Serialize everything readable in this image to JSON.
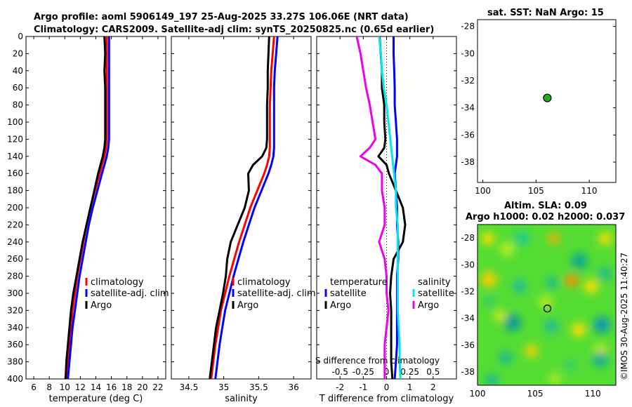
{
  "header": {
    "title_line1": "Argo profile: aoml 5906149_197 25-Aug-2025 33.27S 106.06E (NRT data)",
    "title_line2": "Climatology: CARS2009. Satellite-adj clim: synTS_20250825.nc (0.65d earlier)"
  },
  "side_label": "©IMOS 30-Aug-2025 11:40:27",
  "map1_title": "sat. SST: NaN Argo: 15",
  "map2_title_line1": "Altim. SLA: 0.09",
  "map2_title_line2": "Argo h1000: 0.02 h2000: 0.037",
  "colors": {
    "climatology": "#ff0000",
    "satellite": "#0000ff",
    "argo": "#000000",
    "sat_sal": "#00e5ee",
    "argo_sal": "#ee00ee",
    "marker": "#22aa22"
  },
  "chart_data": [
    {
      "type": "line",
      "id": "temperature",
      "xlabel": "temperature (deg C)",
      "xlim": [
        5,
        23
      ],
      "xticks": [
        "6",
        "8",
        "10",
        "12",
        "14",
        "16",
        "18",
        "20",
        "22"
      ],
      "ylim": [
        0,
        400
      ],
      "yticks": [
        "0",
        "20",
        "40",
        "60",
        "80",
        "100",
        "120",
        "140",
        "160",
        "180",
        "200",
        "220",
        "240",
        "260",
        "280",
        "300",
        "320",
        "340",
        "360",
        "380",
        "400"
      ],
      "depth": [
        0,
        20,
        40,
        60,
        80,
        100,
        120,
        130,
        140,
        150,
        160,
        180,
        200,
        220,
        240,
        260,
        280,
        300,
        320,
        340,
        360,
        380,
        400
      ],
      "series": [
        {
          "name": "climatology",
          "values": [
            15.4,
            15.4,
            15.4,
            15.4,
            15.4,
            15.4,
            15.4,
            15.3,
            15.1,
            14.8,
            14.5,
            13.9,
            13.3,
            12.8,
            12.4,
            12.0,
            11.6,
            11.3,
            11.0,
            10.8,
            10.6,
            10.4,
            10.3
          ]
        },
        {
          "name": "satellite-adj. clim",
          "values": [
            15.7,
            15.7,
            15.7,
            15.7,
            15.7,
            15.7,
            15.7,
            15.6,
            15.4,
            15.1,
            14.8,
            14.2,
            13.6,
            13.1,
            12.7,
            12.3,
            11.9,
            11.6,
            11.3,
            11.0,
            10.8,
            10.6,
            10.4
          ]
        },
        {
          "name": "Argo",
          "values": [
            15.1,
            15.2,
            15.1,
            15.2,
            15.2,
            15.2,
            15.2,
            15.1,
            14.9,
            14.6,
            14.3,
            13.8,
            13.3,
            12.8,
            12.3,
            11.9,
            11.5,
            11.1,
            10.8,
            10.6,
            10.4,
            10.2,
            10.1
          ]
        }
      ],
      "legend": [
        "climatology",
        "satellite-adj. clim",
        "Argo"
      ]
    },
    {
      "type": "line",
      "id": "salinity",
      "xlabel": "salinity",
      "xlim": [
        34.25,
        36.25
      ],
      "xticks": [
        "34.5",
        "35",
        "35.5",
        "36"
      ],
      "ylim": [
        0,
        400
      ],
      "depth": [
        0,
        20,
        40,
        60,
        80,
        100,
        120,
        130,
        140,
        150,
        160,
        180,
        200,
        220,
        240,
        260,
        280,
        300,
        320,
        340,
        360,
        380,
        400
      ],
      "series": [
        {
          "name": "climatology",
          "values": [
            35.72,
            35.7,
            35.68,
            35.67,
            35.66,
            35.66,
            35.66,
            35.66,
            35.65,
            35.62,
            35.58,
            35.48,
            35.38,
            35.3,
            35.22,
            35.15,
            35.08,
            35.02,
            34.96,
            34.92,
            34.88,
            34.85,
            34.82
          ]
        },
        {
          "name": "satellite-adj. clim",
          "values": [
            35.77,
            35.75,
            35.73,
            35.72,
            35.72,
            35.72,
            35.72,
            35.72,
            35.71,
            35.68,
            35.64,
            35.54,
            35.44,
            35.36,
            35.28,
            35.21,
            35.14,
            35.08,
            35.02,
            34.98,
            34.94,
            34.91,
            34.88
          ]
        },
        {
          "name": "Argo",
          "values": [
            35.65,
            35.64,
            35.63,
            35.63,
            35.62,
            35.62,
            35.62,
            35.61,
            35.55,
            35.42,
            35.35,
            35.36,
            35.3,
            35.2,
            35.1,
            35.05,
            35.03,
            34.99,
            34.94,
            34.89,
            34.86,
            34.83,
            34.8
          ]
        }
      ],
      "legend": [
        "climatology",
        "satellite-adj. clim",
        "Argo"
      ]
    },
    {
      "type": "line",
      "id": "difference",
      "xlabel": "T difference from climatology",
      "xlabel_top": "S difference from climatology",
      "xlim": [
        -3,
        3
      ],
      "xticks": [
        "-2",
        "-1",
        "0",
        "1",
        "2"
      ],
      "xticks_top": [
        "-0.5",
        "-0.25",
        "0",
        "0.25",
        "0.5"
      ],
      "ylim": [
        0,
        400
      ],
      "depth": [
        0,
        20,
        40,
        60,
        80,
        100,
        120,
        130,
        140,
        150,
        160,
        180,
        200,
        220,
        240,
        260,
        280,
        300,
        320,
        340,
        360,
        380,
        400
      ],
      "series": [
        {
          "name": "temperature satellite",
          "values": [
            0.3,
            0.3,
            0.33,
            0.35,
            0.35,
            0.4,
            0.45,
            0.45,
            0.45,
            0.4,
            0.35,
            0.4,
            0.45,
            0.45,
            0.5,
            0.5,
            0.45,
            0.45,
            0.45,
            0.45,
            0.45,
            0.4,
            0.35
          ]
        },
        {
          "name": "temperature Argo",
          "values": [
            -0.3,
            -0.25,
            -0.2,
            -0.2,
            -0.1,
            -0.1,
            -0.05,
            -0.1,
            -0.35,
            0.0,
            0.1,
            0.4,
            0.7,
            0.8,
            0.7,
            0.3,
            0.2,
            0.15,
            0.2,
            0.2,
            0.2,
            0.2,
            0.25
          ]
        },
        {
          "name": "salinity satellite",
          "values": [
            -0.08,
            -0.06,
            -0.05,
            -0.03,
            0.0,
            0.02,
            0.04,
            0.05,
            0.06,
            0.07,
            0.08,
            0.1,
            0.1,
            0.12,
            0.12,
            0.12,
            0.12,
            0.12,
            0.12,
            0.13,
            0.14,
            0.14,
            0.15
          ]
        },
        {
          "name": "salinity Argo",
          "values": [
            -0.32,
            -0.28,
            -0.25,
            -0.22,
            -0.18,
            -0.15,
            -0.12,
            -0.18,
            -0.28,
            -0.12,
            -0.05,
            -0.05,
            -0.02,
            -0.02,
            -0.08,
            -0.02,
            0.0,
            0.0,
            0.02,
            0.0,
            -0.02,
            -0.02,
            -0.02
          ]
        }
      ],
      "legend_temperature_title": "temperature",
      "legend_salinity_title": "salinity",
      "legend_temperature": [
        "satellite",
        "Argo"
      ],
      "legend_salinity": [
        "satellite",
        "Argo"
      ]
    },
    {
      "type": "scatter",
      "id": "map_sst",
      "xlim": [
        99.5,
        112.5
      ],
      "ylim": [
        -39.5,
        -27.5
      ],
      "xticks": [
        "100",
        "105",
        "110"
      ],
      "yticks": [
        "-28",
        "-30",
        "-32",
        "-34",
        "-36",
        "-38"
      ],
      "points": [
        {
          "lon": 106.06,
          "lat": -33.27
        }
      ]
    },
    {
      "type": "heatmap",
      "id": "map_sla",
      "xlim": [
        100,
        112
      ],
      "ylim": [
        -39,
        -27
      ],
      "xticks": [
        "100",
        "105",
        "110"
      ],
      "yticks": [
        "-28",
        "-30",
        "-32",
        "-34",
        "-36",
        "-38"
      ],
      "points": [
        {
          "lon": 106.06,
          "lat": -33.27
        }
      ]
    }
  ]
}
